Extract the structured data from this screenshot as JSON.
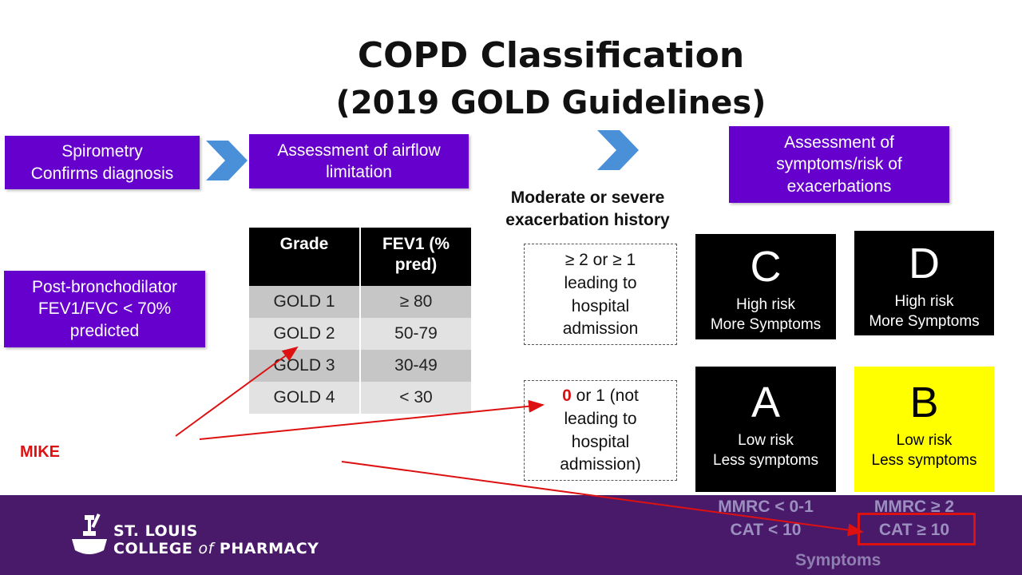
{
  "title": {
    "line1": "COPD Classification",
    "line2": "(2019 GOLD Guidelines)"
  },
  "flow": {
    "spirometry": {
      "line1": "Spirometry",
      "line2": "Confirms diagnosis"
    },
    "airflow": {
      "line1": "Assessment of airflow",
      "line2": "limitation"
    },
    "symptoms": {
      "line1": "Assessment of",
      "line2": "symptoms/risk of",
      "line3": "exacerbations"
    }
  },
  "post_bronchodilator": {
    "line1": "Post-bronchodilator",
    "line2": "FEV1/FVC < 70%",
    "line3": "predicted"
  },
  "grade_table": {
    "headers": {
      "grade": "Grade",
      "fev1_line1": "FEV1 (%",
      "fev1_line2": "pred)"
    },
    "rows": [
      {
        "grade": "GOLD 1",
        "fev1": "≥ 80"
      },
      {
        "grade": "GOLD 2",
        "fev1": "50-79"
      },
      {
        "grade": "GOLD 3",
        "fev1": "30-49"
      },
      {
        "grade": "GOLD 4",
        "fev1": "< 30"
      }
    ]
  },
  "exacerbation": {
    "heading_line1": "Moderate or severe",
    "heading_line2": "exacerbation history",
    "high": {
      "line1": "≥ 2 or ≥ 1",
      "line2": "leading to",
      "line3": "hospital",
      "line4": "admission"
    },
    "low": {
      "zero": "0",
      "line1_rest": " or 1 (not",
      "line2": "leading to",
      "line3": "hospital",
      "line4": "admission)"
    }
  },
  "groups": {
    "C": {
      "letter": "C",
      "line1": "High risk",
      "line2": "More Symptoms"
    },
    "D": {
      "letter": "D",
      "line1": "High risk",
      "line2": "More Symptoms"
    },
    "A": {
      "letter": "A",
      "line1": "Low risk",
      "line2": "Less symptoms"
    },
    "B": {
      "letter": "B",
      "line1": "Low risk",
      "line2": "Less symptoms"
    }
  },
  "scales": {
    "left": {
      "mmrc": "MMRC < 0-1",
      "cat": "CAT < 10"
    },
    "right": {
      "mmrc": "MMRC ≥ 2",
      "cat": "CAT ≥ 10"
    },
    "label": "Symptoms"
  },
  "annotation": {
    "name": "MIKE"
  },
  "logo": {
    "line1": "ST. LOUIS",
    "line2a": "COLLEGE ",
    "line2b": "of",
    "line2c": " PHARMACY"
  },
  "colors": {
    "purple": "#6600cc",
    "footer": "#4a1a6a",
    "chevron": "#4a90d9",
    "red": "#dd1111",
    "yellow": "#ffff00"
  }
}
